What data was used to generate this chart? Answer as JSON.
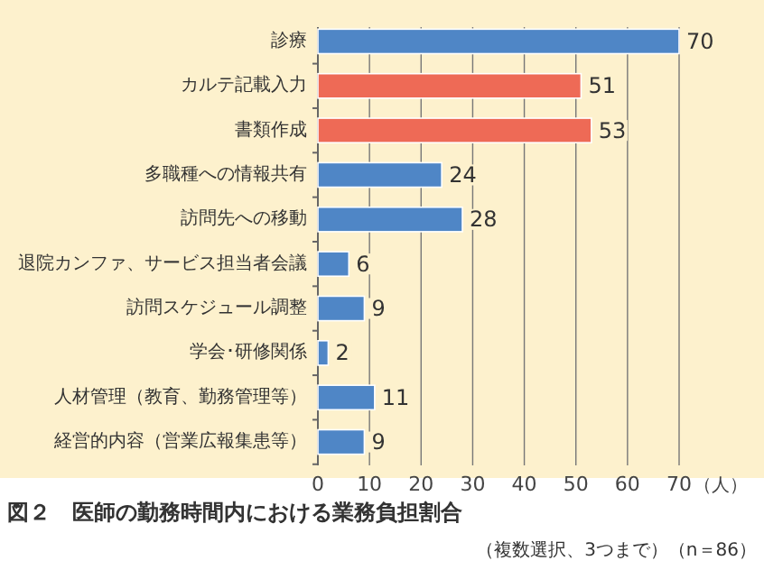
{
  "chart_data": {
    "type": "bar",
    "orientation": "horizontal",
    "title": "図２　医師の勤務時間内における業務負担割合",
    "subtitle": "（複数選択、3つまで）（n＝86）",
    "categories": [
      "診療",
      "カルテ記載入力",
      "書類作成",
      "多職種への情報共有",
      "訪問先への移動",
      "退院カンファ、サービス担当者会議",
      "訪問スケジュール調整",
      "学会･研修関係",
      "人材管理（教育、勤務管理等）",
      "経営的内容（営業広報集患等）"
    ],
    "values": [
      70,
      51,
      53,
      24,
      28,
      6,
      9,
      2,
      11,
      9
    ],
    "colors": [
      "#4f86c6",
      "#ee6a56",
      "#ee6a56",
      "#4f86c6",
      "#4f86c6",
      "#4f86c6",
      "#4f86c6",
      "#4f86c6",
      "#4f86c6",
      "#4f86c6"
    ],
    "xlim": [
      0,
      70
    ],
    "xticks": [
      0,
      10,
      20,
      30,
      40,
      50,
      60,
      70
    ],
    "xlabel": "（人）",
    "grid": "x",
    "data_labels": true
  }
}
